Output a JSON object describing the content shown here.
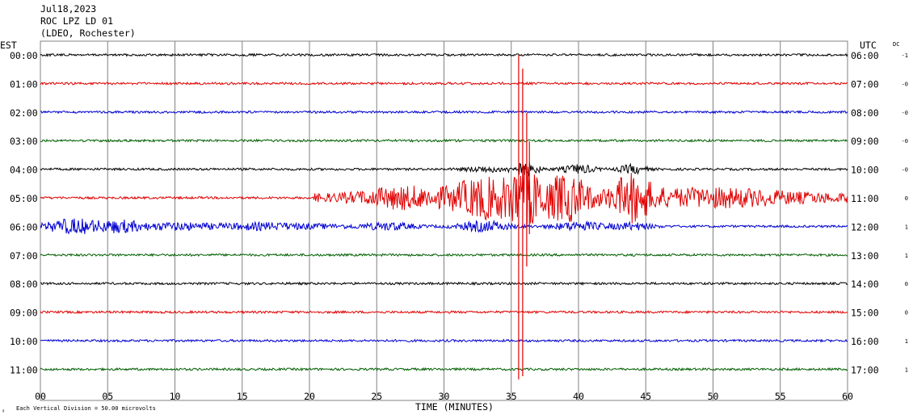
{
  "header": {
    "date": "Jul18,2023",
    "station": "ROC LPZ LD 01",
    "network": "(LDEO, Rochester)"
  },
  "left_axis_title": "EST",
  "right_axis_title": "UTC",
  "dc_title": "DC",
  "footer": {
    "scale_note": "Each Vertical Division =   50.00 microvolts",
    "xlabel": "TIME (MINUTES)"
  },
  "colors": {
    "grid": "#808080",
    "trace_cycle": [
      "#000000",
      "#e00000",
      "#0000d0",
      "#006000"
    ]
  },
  "chart_data": {
    "type": "line",
    "title": "",
    "xlabel": "TIME (MINUTES)",
    "ylabel": "",
    "xlim": [
      0,
      60
    ],
    "x_ticks": [
      "00",
      "05",
      "10",
      "15",
      "20",
      "25",
      "30",
      "35",
      "40",
      "45",
      "50",
      "55",
      "60"
    ],
    "grid": true,
    "series": [
      {
        "est": "00:00",
        "utc": "06:00",
        "dc": "-1"
      },
      {
        "est": "01:00",
        "utc": "07:00",
        "dc": "-0"
      },
      {
        "est": "02:00",
        "utc": "08:00",
        "dc": "-0"
      },
      {
        "est": "03:00",
        "utc": "09:00",
        "dc": "-0"
      },
      {
        "est": "04:00",
        "utc": "10:00",
        "dc": "-0"
      },
      {
        "est": "05:00",
        "utc": "11:00",
        "dc": "0"
      },
      {
        "est": "06:00",
        "utc": "12:00",
        "dc": "1"
      },
      {
        "est": "07:00",
        "utc": "13:00",
        "dc": "1"
      },
      {
        "est": "08:00",
        "utc": "14:00",
        "dc": "0"
      },
      {
        "est": "09:00",
        "utc": "15:00",
        "dc": "0"
      },
      {
        "est": "10:00",
        "utc": "16:00",
        "dc": "1"
      },
      {
        "est": "11:00",
        "utc": "17:00",
        "dc": "1"
      }
    ]
  }
}
